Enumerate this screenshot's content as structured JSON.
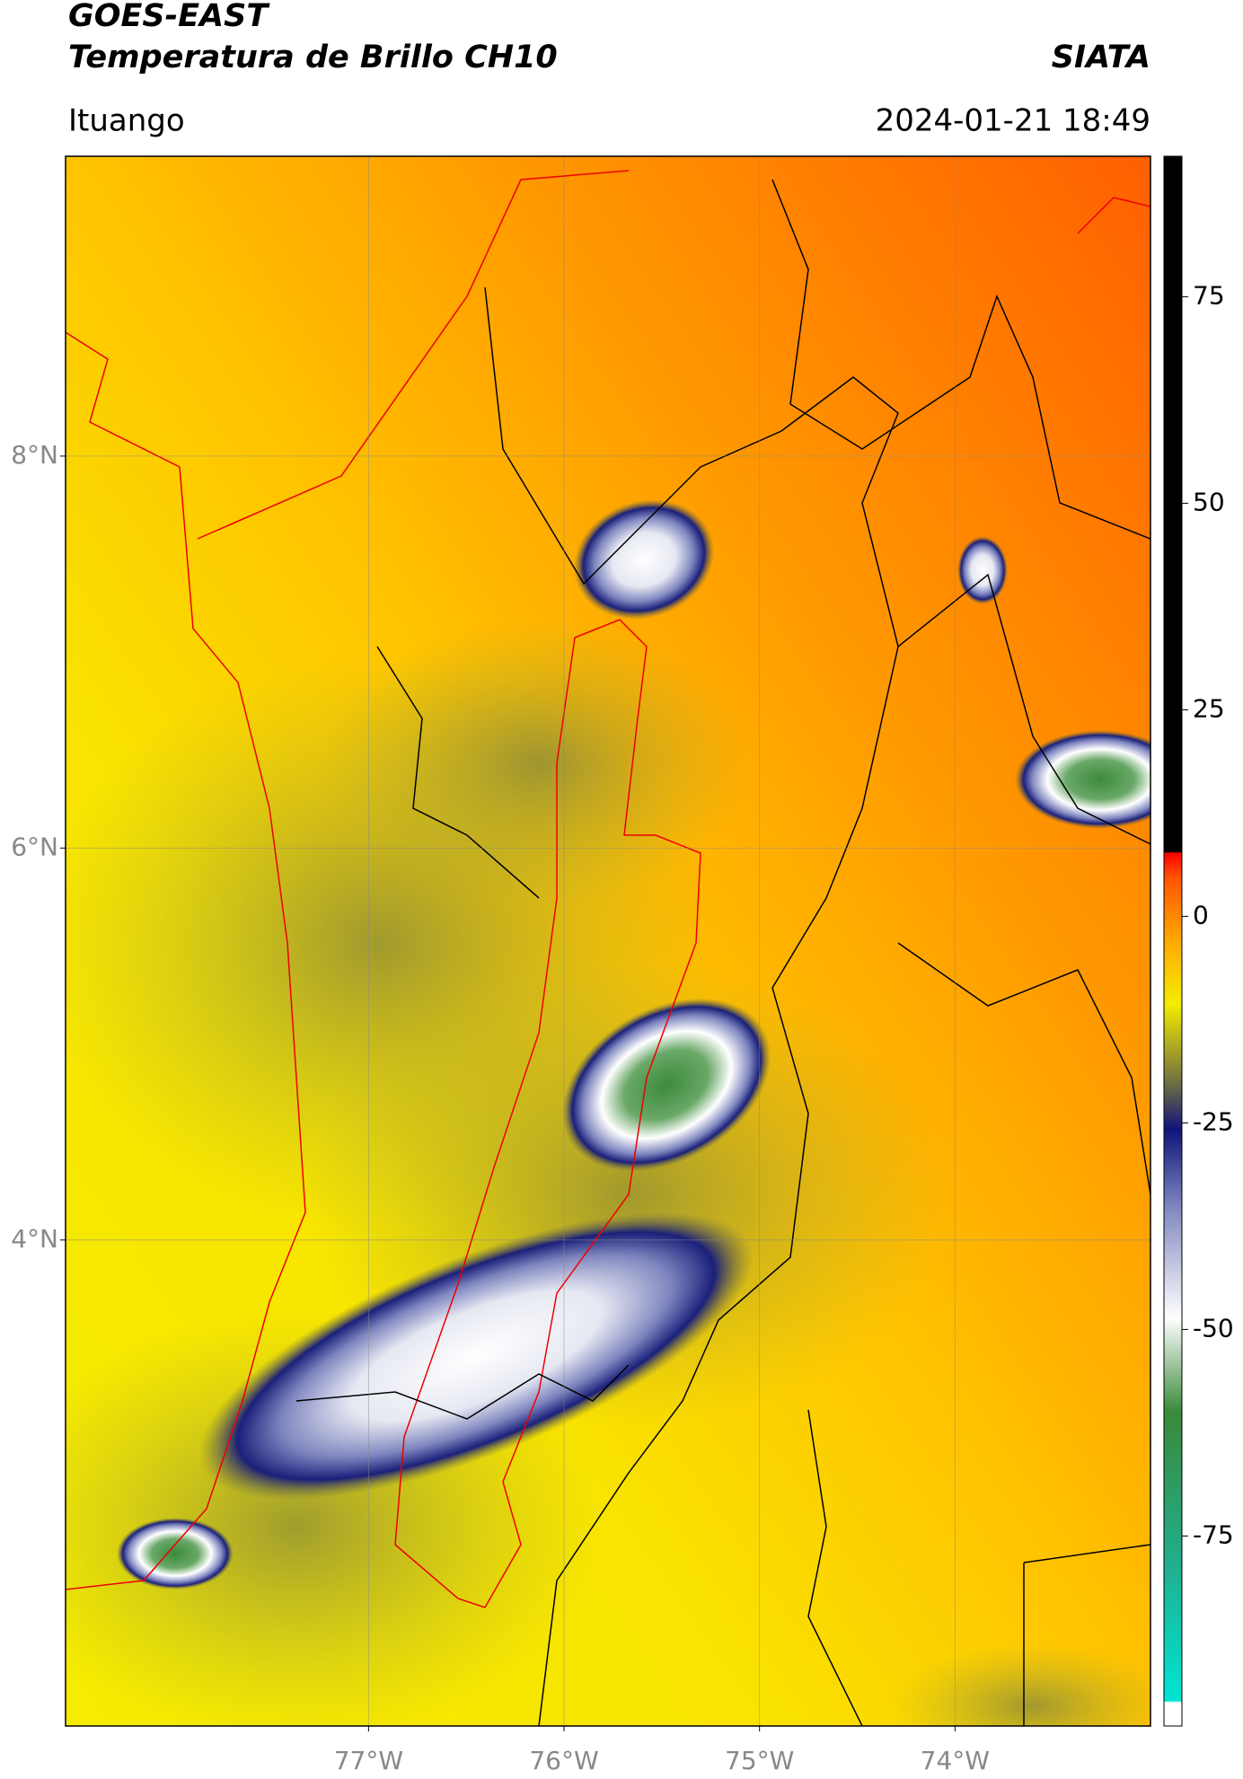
{
  "header": {
    "title": "GOES-EAST",
    "subtitle": "Temperatura de Brillo CH10",
    "brand": "SIATA",
    "region": "Ituango",
    "timestamp": "2024-01-21 18:49"
  },
  "map": {
    "xlim": [
      -78.55,
      -73.0
    ],
    "ylim": [
      1.52,
      9.53
    ],
    "xticks": [
      {
        "value": -77,
        "label": "77°W"
      },
      {
        "value": -76,
        "label": "76°W"
      },
      {
        "value": -75,
        "label": "75°W"
      },
      {
        "value": -74,
        "label": "74°W"
      }
    ],
    "yticks": [
      {
        "value": 8,
        "label": "8°N"
      },
      {
        "value": 6,
        "label": "6°N"
      },
      {
        "value": 4,
        "label": "4°N"
      }
    ],
    "grid": true
  },
  "colorbar": {
    "lim": [
      -98,
      92
    ],
    "ticks": [
      75,
      50,
      25,
      0,
      -25,
      -50,
      -75
    ]
  }
}
